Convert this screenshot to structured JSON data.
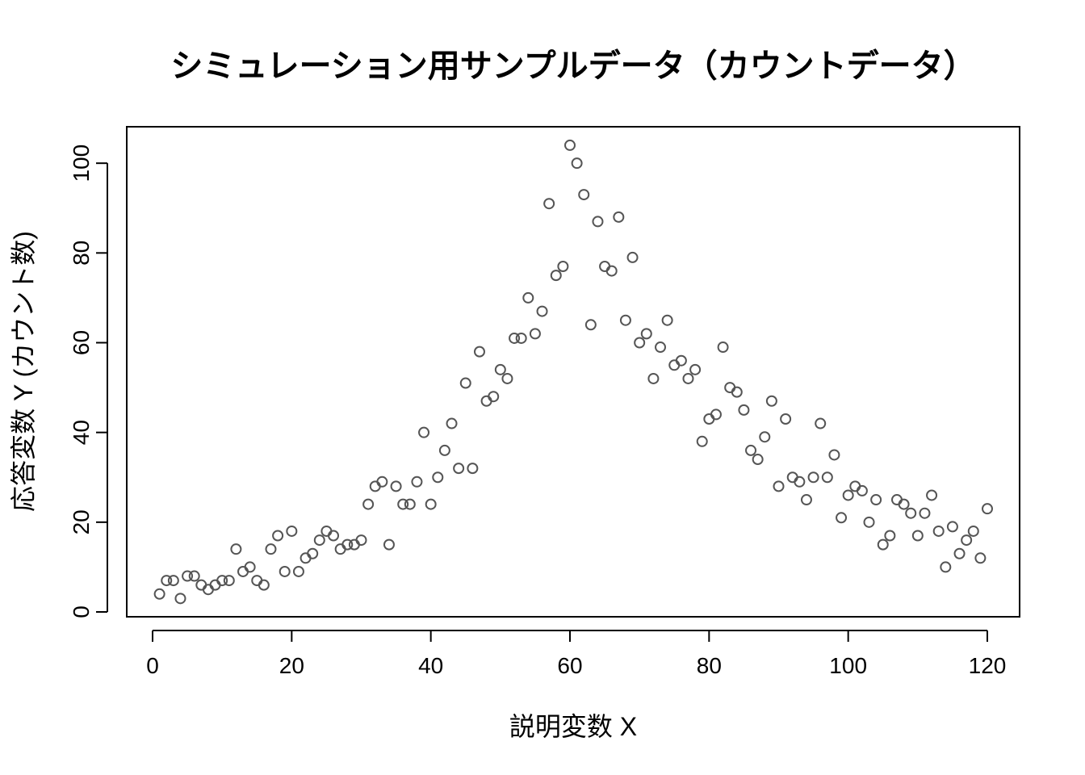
{
  "chart_data": {
    "type": "scatter",
    "title": "シミュレーション用サンプルデータ（カウントデータ）",
    "xlabel": "説明変数 X",
    "ylabel": "応答変数 Y (カウント数)",
    "xlim": [
      0,
      120
    ],
    "ylim": [
      0,
      104
    ],
    "x_ticks": [
      0,
      20,
      40,
      60,
      80,
      100,
      120
    ],
    "y_ticks": [
      0,
      20,
      40,
      60,
      80,
      100
    ],
    "grid": false,
    "marker_color": "#555555",
    "x": [
      1,
      2,
      3,
      4,
      5,
      6,
      7,
      8,
      9,
      10,
      11,
      12,
      13,
      14,
      15,
      16,
      17,
      18,
      19,
      20,
      21,
      22,
      23,
      24,
      25,
      26,
      27,
      28,
      29,
      30,
      31,
      32,
      33,
      34,
      35,
      36,
      37,
      38,
      39,
      40,
      41,
      42,
      43,
      44,
      45,
      46,
      47,
      48,
      49,
      50,
      51,
      52,
      53,
      54,
      55,
      56,
      57,
      58,
      59,
      60,
      61,
      62,
      63,
      64,
      65,
      66,
      67,
      68,
      69,
      70,
      71,
      72,
      73,
      74,
      75,
      76,
      77,
      78,
      79,
      80,
      81,
      82,
      83,
      84,
      85,
      86,
      87,
      88,
      89,
      90,
      91,
      92,
      93,
      94,
      95,
      96,
      97,
      98,
      99,
      100,
      101,
      102,
      103,
      104,
      105,
      106,
      107,
      108,
      109,
      110,
      111,
      112,
      113,
      114,
      115,
      116,
      117,
      118,
      119,
      120
    ],
    "y": [
      4,
      7,
      7,
      3,
      8,
      8,
      6,
      5,
      6,
      7,
      7,
      14,
      9,
      10,
      7,
      6,
      14,
      17,
      9,
      18,
      9,
      12,
      13,
      16,
      18,
      17,
      14,
      15,
      15,
      16,
      24,
      28,
      29,
      15,
      28,
      24,
      24,
      29,
      40,
      24,
      30,
      36,
      42,
      32,
      51,
      32,
      58,
      47,
      48,
      54,
      52,
      61,
      61,
      70,
      62,
      67,
      91,
      75,
      77,
      104,
      100,
      93,
      64,
      87,
      77,
      76,
      88,
      65,
      79,
      60,
      62,
      52,
      59,
      65,
      55,
      56,
      52,
      54,
      38,
      43,
      44,
      59,
      50,
      49,
      45,
      36,
      34,
      39,
      47,
      28,
      43,
      30,
      29,
      25,
      30,
      42,
      30,
      35,
      21,
      26,
      28,
      27,
      20,
      25,
      15,
      17,
      25,
      24,
      22,
      17,
      22,
      26,
      18,
      10,
      19,
      13,
      16,
      18,
      12,
      23
    ]
  }
}
